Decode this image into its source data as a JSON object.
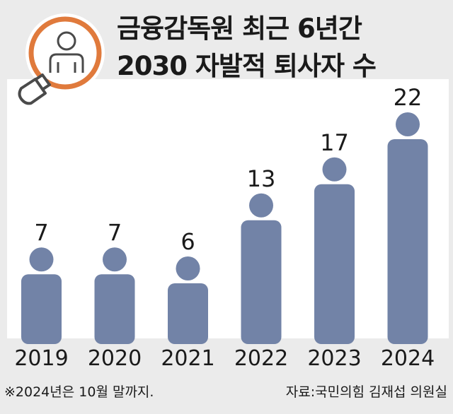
{
  "title": [
    "금융감독원 최근 6년간",
    "2030 자발적 퇴사자 수"
  ],
  "footnote": "※2024년은 10월 말까지.",
  "source": "자료:국민의힘 김재섭 의원실",
  "colors": {
    "background": "#ebebeb",
    "plot_background": "#ffffff",
    "bar": "#7283a7",
    "icon_accent": "#e07a3c",
    "text": "#1a1a1a"
  },
  "chart_data": {
    "type": "bar",
    "categories": [
      "2019",
      "2020",
      "2021",
      "2022",
      "2023",
      "2024"
    ],
    "values": [
      7,
      7,
      6,
      13,
      17,
      22
    ],
    "ylim": [
      0,
      22
    ],
    "grid": false,
    "bar_style": "person-pictogram",
    "data_labels": [
      "7",
      "7",
      "6",
      "13",
      "17",
      "22"
    ]
  },
  "icons": [
    "magnifier-person-icon"
  ]
}
